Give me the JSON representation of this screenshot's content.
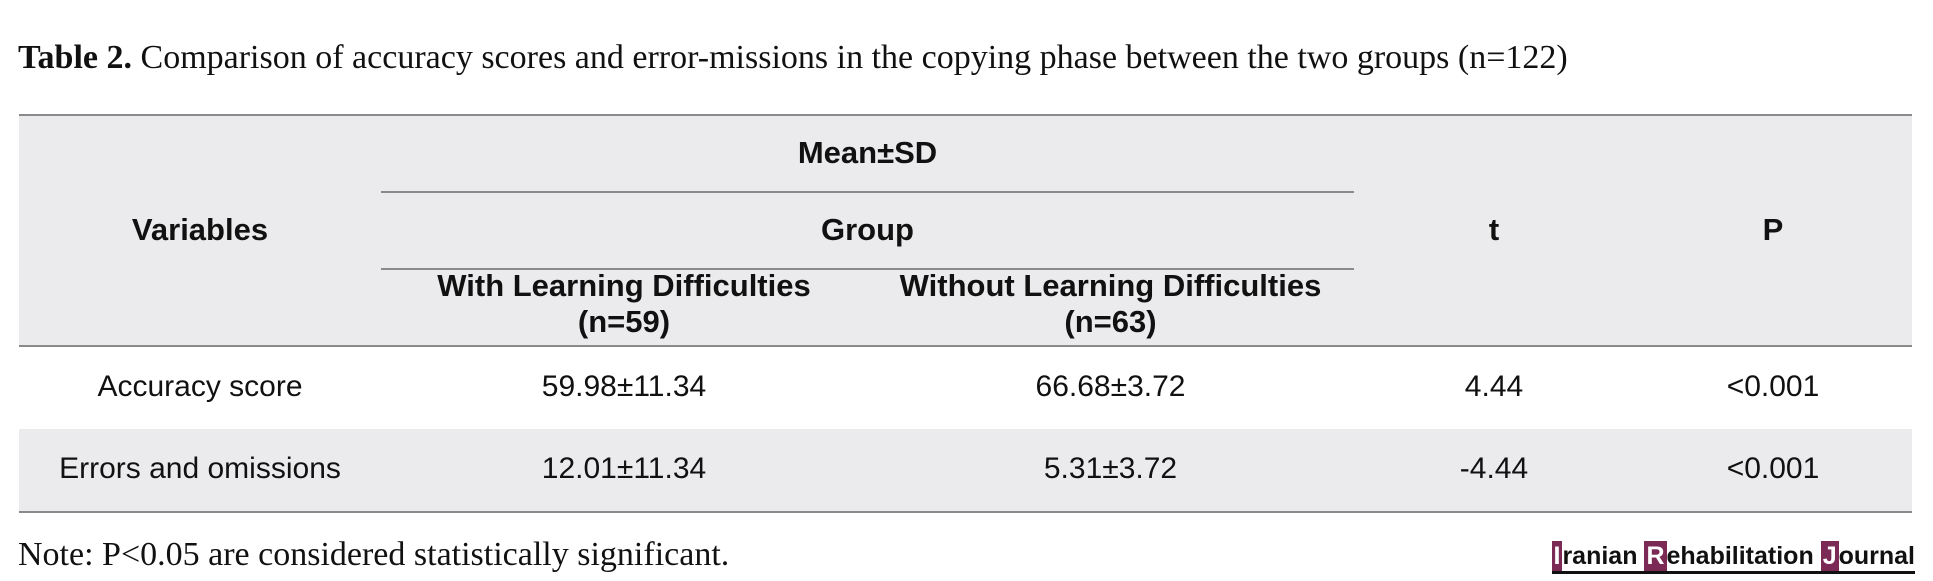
{
  "caption": {
    "label": "Table 2.",
    "text": " Comparison of accuracy scores and error-missions in the copying phase between the two groups (n=122)"
  },
  "table": {
    "headers": {
      "variables": "Variables",
      "mean_sd": "Mean±SD",
      "group": "Group",
      "with_ld": "With Learning Difficulties",
      "with_ld_n": "(n=59)",
      "without_ld": "Without Learning Difficulties",
      "without_ld_n": "(n=63)",
      "t": "t",
      "p": "P"
    },
    "rows": [
      {
        "variable": "Accuracy score",
        "with_ld": "59.98±11.34",
        "without_ld": "66.68±3.72",
        "t": "4.44",
        "p": "<0.001"
      },
      {
        "variable": "Errors and omissions",
        "with_ld": "12.01±11.34",
        "without_ld": "5.31±3.72",
        "t": "-4.44",
        "p": "<0.001"
      }
    ]
  },
  "note": "Note: P<0.05 are considered statistically significant.",
  "journal": {
    "i": "I",
    "ranian": "ranian ",
    "r": "R",
    "ehabilitation": "ehabilitation ",
    "j": "J",
    "ournal": "ournal"
  }
}
